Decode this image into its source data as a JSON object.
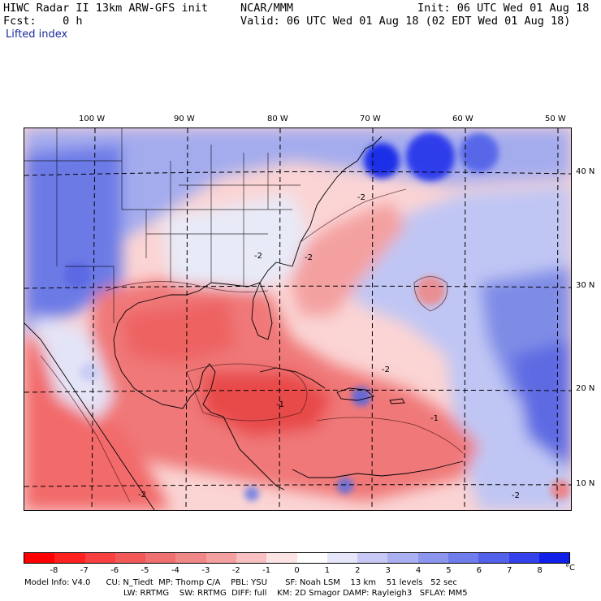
{
  "header": {
    "title": "HIWC Radar II 13km ARW-GFS init",
    "organization": "NCAR/MMM",
    "init": "Init: 06 UTC Wed 01 Aug 18",
    "forecast": "Fcst:    0 h",
    "valid": "Valid: 06 UTC Wed 01 Aug 18 (02 EDT Wed 01 Aug 18)",
    "field": "Lifted index"
  },
  "map": {
    "longitude_labels": [
      "100 W",
      "90 W",
      "80 W",
      "70 W",
      "60 W",
      "50 W"
    ],
    "latitude_labels": [
      "40 N",
      "30 N",
      "20 N",
      "10 N"
    ],
    "contour_labels": [
      "-2",
      "-2",
      "-2",
      "-2",
      "-1",
      "-2",
      "-1",
      "-2"
    ],
    "land_color": "#f2a8a8",
    "ocean_cool_color": "#8090e8",
    "ocean_warm_color": "#f07070"
  },
  "colorbar": {
    "labels": [
      "-8",
      "-7",
      "-6",
      "-5",
      "-4",
      "-3",
      "-2",
      "-1",
      "0",
      "1",
      "2",
      "3",
      "4",
      "5",
      "6",
      "7",
      "8"
    ],
    "unit": "°C",
    "colors": [
      "#ff0000",
      "#ff2020",
      "#f84040",
      "#f25858",
      "#ee7070",
      "#f08888",
      "#f4a0a0",
      "#f8c0c0",
      "#fde4e4",
      "#ffffff",
      "#e6e6fa",
      "#c8c8f6",
      "#aab0f2",
      "#8c96ee",
      "#6e7cec",
      "#5260ea",
      "#3440ea",
      "#1020e8"
    ]
  },
  "footer": {
    "line1": "Model Info: V4.0      CU: N_Tiedt  MP: Thomp C/A    PBL: YSU       SF: Noah LSM    13 km    51 levels   52 sec",
    "line2": "LW: RRTMG    SW: RRTMG  DIFF: full    KM: 2D Smagor DAMP: Rayleigh3   SFLAY: MM5"
  }
}
